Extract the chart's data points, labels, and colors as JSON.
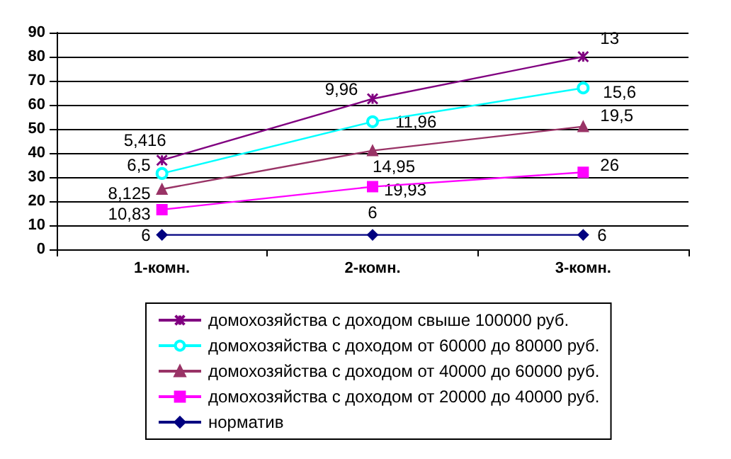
{
  "chart_data": {
    "type": "line",
    "categories": [
      "1-комн.",
      "2-комн.",
      "3-комн."
    ],
    "ylim": [
      0,
      90
    ],
    "yticks": [
      0,
      10,
      20,
      30,
      40,
      50,
      60,
      70,
      80,
      90
    ],
    "grid": "y",
    "legend": "bottom",
    "series": [
      {
        "name": "домохозяйства с доходом свыше 100000 руб.",
        "color": "#800080",
        "marker": "cross",
        "values": [
          37,
          62.5,
          80
        ]
      },
      {
        "name": "домохозяйства с доходом от 60000 до 80000 руб.",
        "color": "#00ffff",
        "marker": "circle",
        "values": [
          31.5,
          53,
          67
        ]
      },
      {
        "name": "домохозяйства с доходом от 40000 до 60000 руб.",
        "color": "#993366",
        "marker": "triangle",
        "values": [
          25,
          41,
          51
        ]
      },
      {
        "name": "домохозяйства с доходом от 20000 до 40000 руб.",
        "color": "#ff00ff",
        "marker": "square",
        "values": [
          16.5,
          26,
          32
        ]
      },
      {
        "name": "норматив",
        "color": "#000080",
        "marker": "diamond",
        "values": [
          6,
          6,
          6
        ]
      }
    ],
    "annotations": [
      {
        "text": "5,416",
        "x": "1-комн.",
        "y": 37
      },
      {
        "text": "9,96",
        "x": "2-комн.",
        "y": 62.5
      },
      {
        "text": "13",
        "x": "3-комн.",
        "y": 80
      },
      {
        "text": "6,5",
        "x": "1-комн.",
        "y": 31.5
      },
      {
        "text": "11,96",
        "x": "2-комн.",
        "y": 53
      },
      {
        "text": "15,6",
        "x": "3-комн.",
        "y": 67
      },
      {
        "text": "8,125",
        "x": "1-комн.",
        "y": 25
      },
      {
        "text": "14,95",
        "x": "2-комн.",
        "y": 41
      },
      {
        "text": "19,5",
        "x": "3-комн.",
        "y": 51
      },
      {
        "text": "10,83",
        "x": "1-комн.",
        "y": 16.5
      },
      {
        "text": "19,93",
        "x": "2-комн.",
        "y": 26
      },
      {
        "text": "26",
        "x": "3-комн.",
        "y": 32
      },
      {
        "text": "6",
        "x": "1-комн.",
        "y": 6
      },
      {
        "text": "6",
        "x": "2-комн.",
        "y": 6
      },
      {
        "text": "6",
        "x": "3-комн.",
        "y": 6
      }
    ]
  }
}
